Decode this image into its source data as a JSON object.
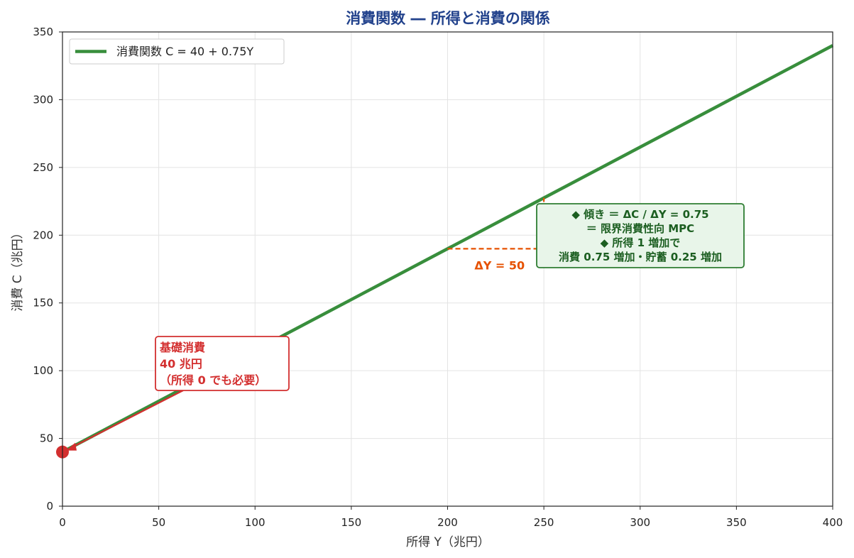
{
  "chart_data": {
    "type": "line",
    "title": "消費関数 ― 所得と消費の関係",
    "xlabel": "所得 Y（兆円）",
    "ylabel": "消費 C（兆円）",
    "xlim": [
      0,
      400
    ],
    "ylim": [
      0,
      350
    ],
    "xticks": [
      0,
      50,
      100,
      150,
      200,
      250,
      300,
      350,
      400
    ],
    "yticks": [
      0,
      50,
      100,
      150,
      200,
      250,
      300,
      350
    ],
    "grid": true,
    "legend_position": "top-left",
    "series": [
      {
        "name": "消費関数 C = 40 + 0.75Y",
        "color": "#388e3c",
        "x": [
          0,
          400
        ],
        "y": [
          40,
          340
        ]
      }
    ],
    "intercept_point": {
      "x": 0,
      "y": 40,
      "color": "#d32f2f"
    },
    "delta_step": {
      "x_from": 200,
      "x_to": 250,
      "y_from": 190,
      "y_to": 227.5,
      "color": "#e65100"
    },
    "annotations": {
      "delta_label": "ΔY = 50",
      "base_consumption": {
        "lines": [
          "基礎消費",
          "40 兆円",
          "（所得 0 でも必要）"
        ],
        "color": "#d32f2f"
      },
      "slope_note": {
        "lines": [
          "◆ 傾き ＝ ΔC / ΔY = 0.75",
          "＝ 限界消費性向 MPC",
          "◆ 所得 1 増加で",
          "消費 0.75 増加・貯蓄 0.25 増加"
        ],
        "color": "#2e7d32",
        "background": "#e8f5e9"
      }
    }
  }
}
